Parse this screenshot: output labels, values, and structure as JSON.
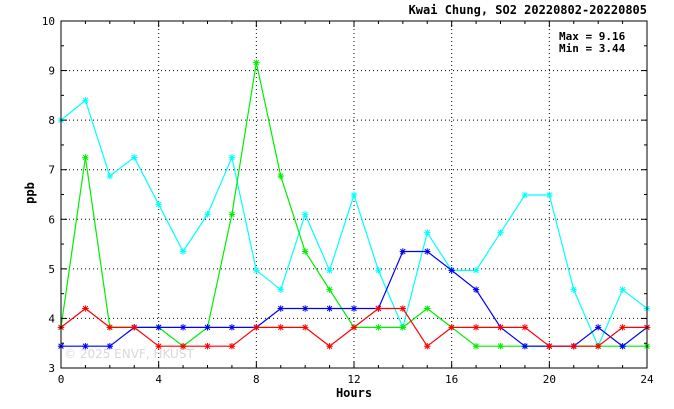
{
  "chart_data": {
    "type": "line",
    "title": "Kwai Chung, SO2 20220802-20220805",
    "xlabel": "Hours",
    "ylabel": "ppb",
    "xlim": [
      0,
      24
    ],
    "ylim": [
      3,
      10
    ],
    "xticks": [
      0,
      4,
      8,
      12,
      16,
      20,
      24
    ],
    "yticks": [
      3,
      4,
      5,
      6,
      7,
      8,
      9,
      10
    ],
    "grid": true,
    "stats": {
      "max": "Max = 9.16",
      "min": "Min = 3.44"
    },
    "watermark": "© 2025 ENVF, HKUST",
    "x": [
      0,
      1,
      2,
      3,
      4,
      5,
      6,
      7,
      8,
      9,
      10,
      11,
      12,
      13,
      14,
      15,
      16,
      17,
      18,
      19,
      20,
      21,
      22,
      23,
      24
    ],
    "series": [
      {
        "color": "#00ffff",
        "values": [
          8.0,
          8.4,
          6.87,
          7.25,
          6.3,
          5.35,
          6.1,
          7.25,
          4.97,
          4.58,
          6.1,
          4.97,
          6.49,
          4.97,
          3.82,
          5.73,
          4.97,
          4.97,
          5.73,
          6.49,
          6.49,
          4.58,
          3.44,
          4.58,
          4.2
        ]
      },
      {
        "color": "#00ee00",
        "values": [
          3.82,
          7.25,
          3.82,
          3.82,
          3.82,
          3.44,
          3.82,
          6.1,
          9.16,
          6.87,
          5.35,
          4.58,
          3.82,
          3.82,
          3.82,
          4.2,
          3.82,
          3.44,
          3.44,
          3.44,
          3.44,
          3.44,
          3.44,
          3.44,
          3.44
        ]
      },
      {
        "color": "#0000ff",
        "values": [
          3.44,
          3.44,
          3.44,
          3.82,
          3.82,
          3.82,
          3.82,
          3.82,
          3.82,
          4.2,
          4.2,
          4.2,
          4.2,
          4.2,
          5.35,
          5.35,
          4.97,
          4.58,
          3.82,
          3.44,
          3.44,
          3.44,
          3.82,
          3.44,
          3.82
        ]
      },
      {
        "color": "#ff0000",
        "values": [
          3.82,
          4.2,
          3.82,
          3.82,
          3.44,
          3.44,
          3.44,
          3.44,
          3.82,
          3.82,
          3.82,
          3.44,
          3.82,
          4.2,
          4.2,
          3.44,
          3.82,
          3.82,
          3.82,
          3.82,
          3.44,
          3.44,
          3.44,
          3.82,
          3.82
        ]
      }
    ]
  }
}
